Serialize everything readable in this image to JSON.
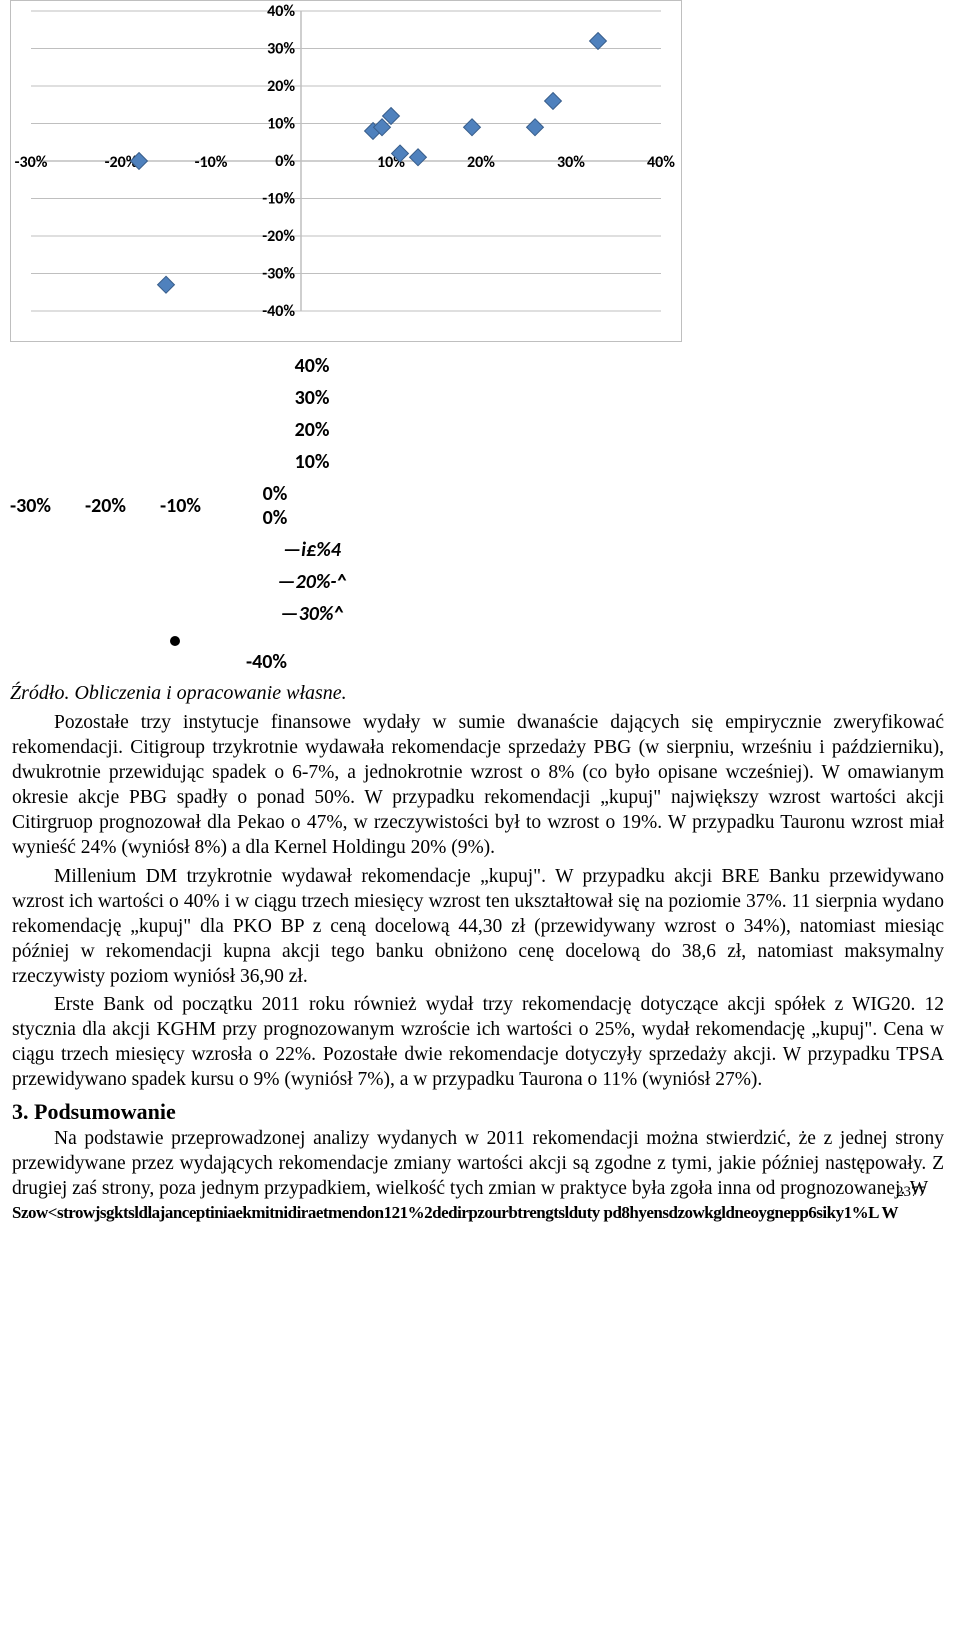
{
  "chart": {
    "type": "scatter",
    "border_color": "#bfbfbf",
    "background_color": "#ffffff",
    "grid_color": "#bfbfbf",
    "marker_color": "#4f81bd",
    "marker_border": "#385d8a",
    "marker_size": 11,
    "label_font_size": 16,
    "label_font_weight": 700,
    "label_font_family": "Calibri, Arial, sans-serif",
    "xlim": [
      -30,
      40
    ],
    "ylim": [
      -40,
      40
    ],
    "xtick_step": 10,
    "ytick_step": 10,
    "x_ticks": [
      "-30%",
      "-20%",
      "-10%",
      "0%",
      "10%",
      "20%",
      "30%",
      "40%"
    ],
    "y_ticks": [
      "-40%",
      "-30%",
      "-20%",
      "-10%",
      "0%",
      "10%",
      "20%",
      "30%",
      "40%"
    ],
    "points": [
      [
        -18,
        0
      ],
      [
        -15,
        -33
      ],
      [
        8,
        8
      ],
      [
        9,
        9
      ],
      [
        10,
        12
      ],
      [
        11,
        2
      ],
      [
        13,
        1
      ],
      [
        19,
        9
      ],
      [
        26,
        9
      ],
      [
        28,
        16
      ],
      [
        33,
        32
      ]
    ]
  },
  "secondary": {
    "neg_x": [
      "-30%",
      "-20%",
      "-10%"
    ],
    "col_ticks": [
      "40%",
      "30%",
      "20%",
      "10%",
      "0%",
      "0%"
    ],
    "lines": [
      "—i£%4",
      "—20%-^",
      "—30%^"
    ],
    "last": "-40%"
  },
  "source_line": "Źródło. Obliczenia i opracowanie własne.",
  "body": {
    "p1": "Pozostałe trzy instytucje finansowe wydały w sumie dwanaście dających się empirycznie zweryfikować rekomendacji. Citigroup trzykrotnie wydawała rekomendacje sprzedaży PBG (w sierpniu, wrześniu i październiku), dwukrotnie przewidując spadek o 6-7%, a jednokrotnie wzrost o 8% (co było opisane wcześniej). W omawianym okresie akcje PBG spadły o ponad 50%. W przypadku rekomendacji „kupuj\" największy wzrost wartości akcji Citirgruop prognozował dla Pekao o 47%, w rzeczywistości był to wzrost o 19%. W przypadku Tauronu wzrost miał wynieść 24% (wyniósł 8%) a dla Kernel Holdingu 20% (9%).",
    "p2": "Millenium DM trzykrotnie wydawał rekomendacje „kupuj\". W przypadku akcji BRE Banku przewidywano wzrost ich wartości o 40% i w ciągu trzech miesięcy wzrost ten ukształtował się na poziomie 37%. 11 sierpnia wydano rekomendację „kupuj\" dla PKO BP z ceną docelową 44,30 zł (przewidywany wzrost o 34%), natomiast miesiąc później w rekomendacji kupna akcji tego banku obniżono cenę docelową do 38,6 zł, natomiast maksymalny rzeczywisty poziom wyniósł 36,90 zł.",
    "p3": "Erste Bank od początku 2011 roku również wydał trzy rekomendację dotyczące akcji spółek z WIG20. 12 stycznia dla akcji KGHM przy prognozowanym wzroście ich wartości o 25%, wydał rekomendację „kupuj\". Cena w ciągu trzech miesięcy wzrosła o 22%. Pozostałe dwie rekomendacje dotyczyły sprzedaży akcji. W przypadku TPSA przewidywano spadek kursu o 9% (wyniósł 7%), a w przypadku Taurona o 11% (wyniósł 27%).",
    "section_title": "3. Podsumowanie",
    "p4": "Na podstawie przeprowadzonej analizy wydanych w 2011 rekomendacji można stwierdzić, że z jednej strony przewidywane przez wydających rekomendacje zmiany wartości akcji są zgodne z tymi, jakie później następowały. Z drugiej zaś strony, poza jednym przypadkiem, wielkość tych zmian w praktyce była zgoła inna od prognozowanej. W"
  },
  "page_number": "2377",
  "overstrike": "Szow<strowjsgktsldlajanceptiniaekmitnidiraetmendon121%2dedirpzourbtrengtslduty pd8hyensdzowkgldneoygnepp6siky1%L W"
}
